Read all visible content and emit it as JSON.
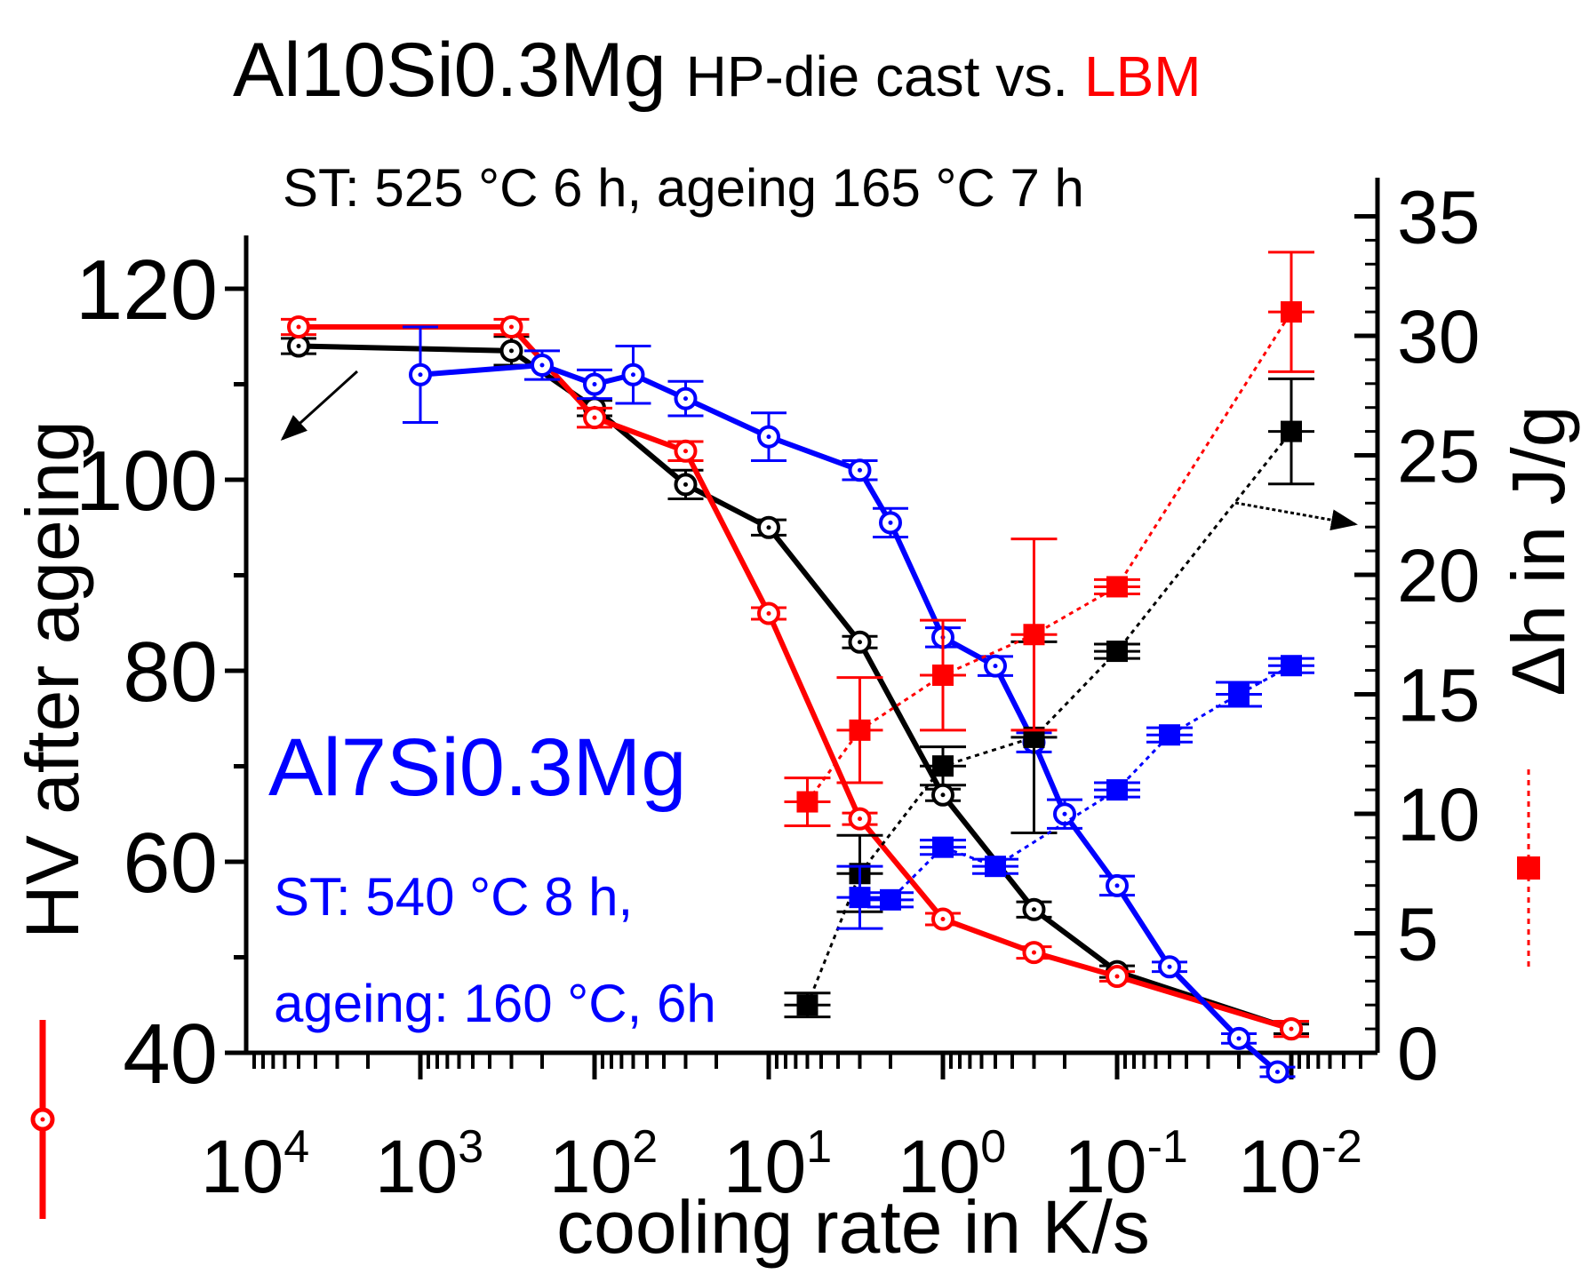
{
  "title": {
    "main": "Al10Si0.3Mg",
    "middle": "HP-die cast vs.",
    "lbm": "LBM",
    "subtitle": "ST: 525 °C 6 h, ageing 165 °C 7 h"
  },
  "annotation": {
    "alloy": "Al7Si0.3Mg",
    "st": "ST: 540 °C 8 h,",
    "ageing": "ageing: 160 °C, 6h"
  },
  "colors": {
    "red": "#ff0000",
    "black": "#000000",
    "blue": "#0000ff"
  },
  "chart_data": {
    "type": "line",
    "xlabel": "cooling rate in K/s",
    "x_scale": "log10, reversed",
    "x_ticks": [
      {
        "base": "10",
        "exp": "4",
        "value": 10000
      },
      {
        "base": "10",
        "exp": "3",
        "value": 1000
      },
      {
        "base": "10",
        "exp": "2",
        "value": 100
      },
      {
        "base": "10",
        "exp": "1",
        "value": 10
      },
      {
        "base": "10",
        "exp": "0",
        "value": 1
      },
      {
        "base": "10",
        "exp": "-1",
        "value": 0.1
      },
      {
        "base": "10",
        "exp": "-2",
        "value": 0.01
      }
    ],
    "xlim": [
      10000,
      0.005
    ],
    "y_left": {
      "label": "HV after ageing",
      "ticks": [
        "40",
        "60",
        "80",
        "100",
        "120"
      ],
      "ylim": [
        40,
        125
      ]
    },
    "y_right": {
      "label": "Δh in J/g",
      "ticks": [
        "0",
        "5",
        "10",
        "15",
        "20",
        "25",
        "30",
        "35"
      ],
      "ylim": [
        0,
        35
      ]
    },
    "hv_series": [
      {
        "name": "Al10Si0.3Mg HP-die cast HV",
        "color": "#000000",
        "marker": "open-circle-dot",
        "line": "solid",
        "points": [
          {
            "x": 5000,
            "y": 114.0,
            "err": 0.8
          },
          {
            "x": 300,
            "y": 113.5,
            "err": 1.5
          },
          {
            "x": 100,
            "y": 107.5,
            "err": 0.8
          },
          {
            "x": 30,
            "y": 99.5,
            "err": 1.5
          },
          {
            "x": 10,
            "y": 95.0,
            "err": 0.8
          },
          {
            "x": 3,
            "y": 83.0,
            "err": 0.6
          },
          {
            "x": 1,
            "y": 67.0,
            "err": 0.6
          },
          {
            "x": 0.3,
            "y": 55.0,
            "err": 0.8
          },
          {
            "x": 0.1,
            "y": 48.5,
            "err": 0.6
          },
          {
            "x": 0.01,
            "y": 42.5,
            "err": 0.5
          }
        ]
      },
      {
        "name": "Al10Si0.3Mg LBM HV",
        "color": "#ff0000",
        "marker": "open-circle-dot",
        "line": "solid",
        "points": [
          {
            "x": 5000,
            "y": 116.0,
            "err": 0.8
          },
          {
            "x": 300,
            "y": 116.0,
            "err": 0.8
          },
          {
            "x": 100,
            "y": 106.5,
            "err": 1.0
          },
          {
            "x": 30,
            "y": 103.0,
            "err": 1.0
          },
          {
            "x": 10,
            "y": 86.0,
            "err": 0.6
          },
          {
            "x": 3,
            "y": 64.5,
            "err": 0.6
          },
          {
            "x": 1,
            "y": 54.0,
            "err": 0.6
          },
          {
            "x": 0.3,
            "y": 50.5,
            "err": 0.6
          },
          {
            "x": 0.1,
            "y": 48.0,
            "err": 0.5
          },
          {
            "x": 0.01,
            "y": 42.5,
            "err": 0.8
          }
        ]
      },
      {
        "name": "Al7Si0.3Mg HV",
        "color": "#0000ff",
        "marker": "open-circle-dot",
        "line": "solid",
        "points": [
          {
            "x": 1000,
            "y": 111.0,
            "err": 5.0
          },
          {
            "x": 200,
            "y": 112.0,
            "err": 1.5
          },
          {
            "x": 100,
            "y": 110.0,
            "err": 1.5
          },
          {
            "x": 60,
            "y": 111.0,
            "err": 3.0
          },
          {
            "x": 30,
            "y": 108.5,
            "err": 1.8
          },
          {
            "x": 10,
            "y": 104.5,
            "err": 2.5
          },
          {
            "x": 3,
            "y": 101.0,
            "err": 1.0
          },
          {
            "x": 2,
            "y": 95.5,
            "err": 1.5
          },
          {
            "x": 1,
            "y": 83.5,
            "err": 1.0
          },
          {
            "x": 0.5,
            "y": 80.5,
            "err": 1.0
          },
          {
            "x": 0.3,
            "y": 72.5,
            "err": 1.0
          },
          {
            "x": 0.2,
            "y": 65.0,
            "err": 1.5
          },
          {
            "x": 0.1,
            "y": 57.5,
            "err": 1.0
          },
          {
            "x": 0.05,
            "y": 49.0,
            "err": 0.5
          },
          {
            "x": 0.02,
            "y": 41.5,
            "err": 0.5
          },
          {
            "x": 0.012,
            "y": 38.0,
            "err": 0.5
          }
        ]
      }
    ],
    "dh_series": [
      {
        "name": "Al10Si0.3Mg HP-die cast Δh",
        "color": "#000000",
        "marker": "filled-square",
        "line": "dotted",
        "points": [
          {
            "x": 6,
            "y": 2.0,
            "err": 0.5,
            "xerr": 1.4
          },
          {
            "x": 3,
            "y": 7.5,
            "err": 1.6,
            "xerr": 1.4
          },
          {
            "x": 1,
            "y": 12.0,
            "err": 0.8,
            "xerr": 1.4
          },
          {
            "x": 0.3,
            "y": 13.2,
            "err": 4.0,
            "xerr": 1.4
          },
          {
            "x": 0.1,
            "y": 16.8,
            "err": 0.3,
            "xerr": 1.4
          },
          {
            "x": 0.01,
            "y": 26.0,
            "err": 2.2,
            "xerr": 1.4
          }
        ]
      },
      {
        "name": "Al10Si0.3Mg LBM Δh",
        "color": "#ff0000",
        "marker": "filled-square",
        "line": "dotted",
        "points": [
          {
            "x": 6,
            "y": 10.5,
            "err": 1.0,
            "xerr": 1.4
          },
          {
            "x": 3,
            "y": 13.5,
            "err": 2.2,
            "xerr": 1.4
          },
          {
            "x": 1,
            "y": 15.8,
            "err": 2.3,
            "xerr": 1.4
          },
          {
            "x": 0.3,
            "y": 17.5,
            "err": 4.0,
            "xerr": 1.4
          },
          {
            "x": 0.1,
            "y": 19.5,
            "err": 0.3,
            "xerr": 1.4
          },
          {
            "x": 0.01,
            "y": 31.0,
            "err": 2.5,
            "xerr": 1.4
          }
        ]
      },
      {
        "name": "Al7Si0.3Mg Δh",
        "color": "#0000ff",
        "marker": "filled-square",
        "line": "dotted",
        "points": [
          {
            "x": 3,
            "y": 6.5,
            "err": 1.3,
            "xerr": 1.4
          },
          {
            "x": 2,
            "y": 6.4,
            "err": 0.3,
            "xerr": 1.4
          },
          {
            "x": 1,
            "y": 8.6,
            "err": 0.3,
            "xerr": 1.4
          },
          {
            "x": 0.5,
            "y": 7.8,
            "err": 0.3,
            "xerr": 1.4
          },
          {
            "x": 0.1,
            "y": 11.0,
            "err": 0.3,
            "xerr": 1.4
          },
          {
            "x": 0.05,
            "y": 13.3,
            "err": 0.3,
            "xerr": 1.4
          },
          {
            "x": 0.02,
            "y": 15.0,
            "err": 0.5,
            "xerr": 1.4
          },
          {
            "x": 0.01,
            "y": 16.2,
            "err": 0.3,
            "xerr": 1.4
          }
        ]
      }
    ]
  }
}
